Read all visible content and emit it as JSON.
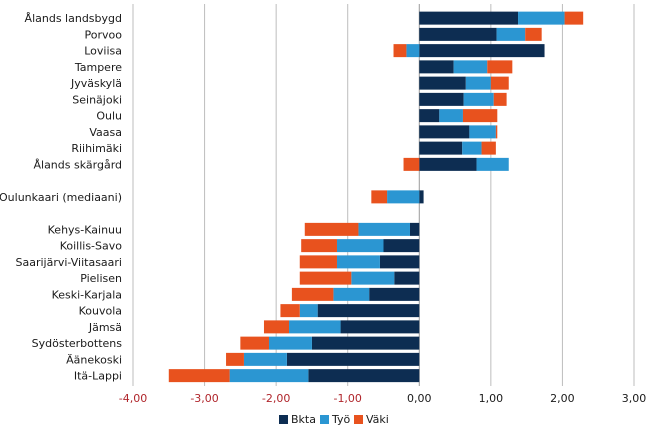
{
  "chart_data": {
    "type": "bar",
    "orientation": "horizontal",
    "stacked": true,
    "title": "",
    "xlabel": "",
    "ylabel": "",
    "xlim": [
      -4,
      3
    ],
    "x_ticks": [
      -4,
      -3,
      -2,
      -1,
      0,
      1,
      2,
      3
    ],
    "x_tick_labels": [
      "-4,00",
      "-3,00",
      "-2,00",
      "-1,00",
      "0,00",
      "1,00",
      "2,00",
      "3,00"
    ],
    "grid": "vertical",
    "legend_position": "bottom-right",
    "categories": [
      "Ålands landsbygd",
      "Porvoo",
      "Loviisa",
      "Tampere",
      "Jyväskylä",
      "Seinäjoki",
      "Oulu",
      "Vaasa",
      "Riihimäki",
      "Ålands skärgård",
      "",
      "Oulunkaari (mediaani)",
      "",
      "Kehys-Kainuu",
      "Koillis-Savo",
      "Saarijärvi-Viitasaari",
      "Pielisen",
      "Keski-Karjala",
      "Kouvola",
      "Jämsä",
      "Sydösterbottens",
      "Äänekoski",
      "Itä-Lappi"
    ],
    "series": [
      {
        "name": "Bkta",
        "color": "#0d2d52",
        "values": [
          1.38,
          1.08,
          1.75,
          0.48,
          0.65,
          0.62,
          0.28,
          0.7,
          0.6,
          0.8,
          null,
          0.06,
          null,
          -0.13,
          -0.5,
          -0.55,
          -0.35,
          -0.7,
          -1.42,
          -1.1,
          -1.5,
          -1.85,
          -1.55
        ]
      },
      {
        "name": "Työ",
        "color": "#2b96d2",
        "values": [
          0.65,
          0.4,
          -0.18,
          0.47,
          0.35,
          0.42,
          0.33,
          0.37,
          0.27,
          0.45,
          null,
          -0.45,
          null,
          -0.72,
          -0.65,
          -0.6,
          -0.6,
          -0.5,
          -0.25,
          -0.72,
          -0.6,
          -0.6,
          -1.1
        ]
      },
      {
        "name": "Väki",
        "color": "#e8521e",
        "values": [
          0.26,
          0.23,
          -0.18,
          0.35,
          0.25,
          0.18,
          0.48,
          0.02,
          0.2,
          -0.22,
          null,
          -0.22,
          null,
          -0.75,
          -0.5,
          -0.52,
          -0.72,
          -0.58,
          -0.27,
          -0.35,
          -0.4,
          -0.25,
          -0.85
        ]
      }
    ]
  }
}
